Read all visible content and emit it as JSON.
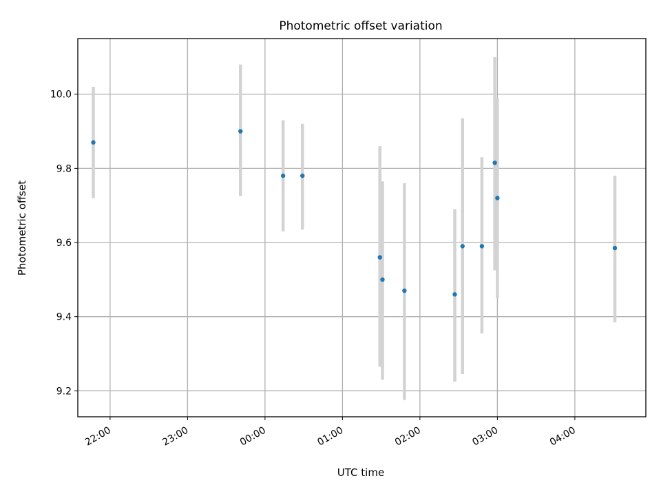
{
  "chart_data": {
    "type": "scatter",
    "title": "Photometric offset variation",
    "xlabel": "UTC time",
    "ylabel": "Photometric offset",
    "x_axis_type": "time",
    "xlim": [
      "21:35",
      "04:55"
    ],
    "ylim": [
      9.13,
      10.15
    ],
    "xticks": [
      "22:00",
      "23:00",
      "00:00",
      "01:00",
      "02:00",
      "03:00",
      "04:00"
    ],
    "yticks": [
      "9.2",
      "9.4",
      "9.6",
      "9.8",
      "10.0"
    ],
    "grid": true,
    "legend": "none",
    "points": [
      {
        "x": "21:47",
        "y": 9.87,
        "err_low": 9.72,
        "err_high": 10.02
      },
      {
        "x": "23:41",
        "y": 9.9,
        "err_low": 9.725,
        "err_high": 10.08
      },
      {
        "x": "00:14",
        "y": 9.78,
        "err_low": 9.63,
        "err_high": 9.93
      },
      {
        "x": "00:29",
        "y": 9.78,
        "err_low": 9.635,
        "err_high": 9.92
      },
      {
        "x": "01:29",
        "y": 9.56,
        "err_low": 9.265,
        "err_high": 9.86
      },
      {
        "x": "01:31",
        "y": 9.5,
        "err_low": 9.23,
        "err_high": 9.765
      },
      {
        "x": "01:48",
        "y": 9.47,
        "err_low": 9.175,
        "err_high": 9.76
      },
      {
        "x": "02:27",
        "y": 9.46,
        "err_low": 9.225,
        "err_high": 9.69
      },
      {
        "x": "02:33",
        "y": 9.59,
        "err_low": 9.245,
        "err_high": 9.935
      },
      {
        "x": "02:48",
        "y": 9.59,
        "err_low": 9.355,
        "err_high": 9.83
      },
      {
        "x": "02:58",
        "y": 9.815,
        "err_low": 9.525,
        "err_high": 10.1
      },
      {
        "x": "03:00",
        "y": 9.72,
        "err_low": 9.45,
        "err_high": 9.99
      },
      {
        "x": "04:31",
        "y": 9.585,
        "err_low": 9.385,
        "err_high": 9.78
      }
    ],
    "colors": {
      "marker": "#1f77b4",
      "errorbar": "#d3d3d3",
      "grid": "#b0b0b0"
    }
  }
}
